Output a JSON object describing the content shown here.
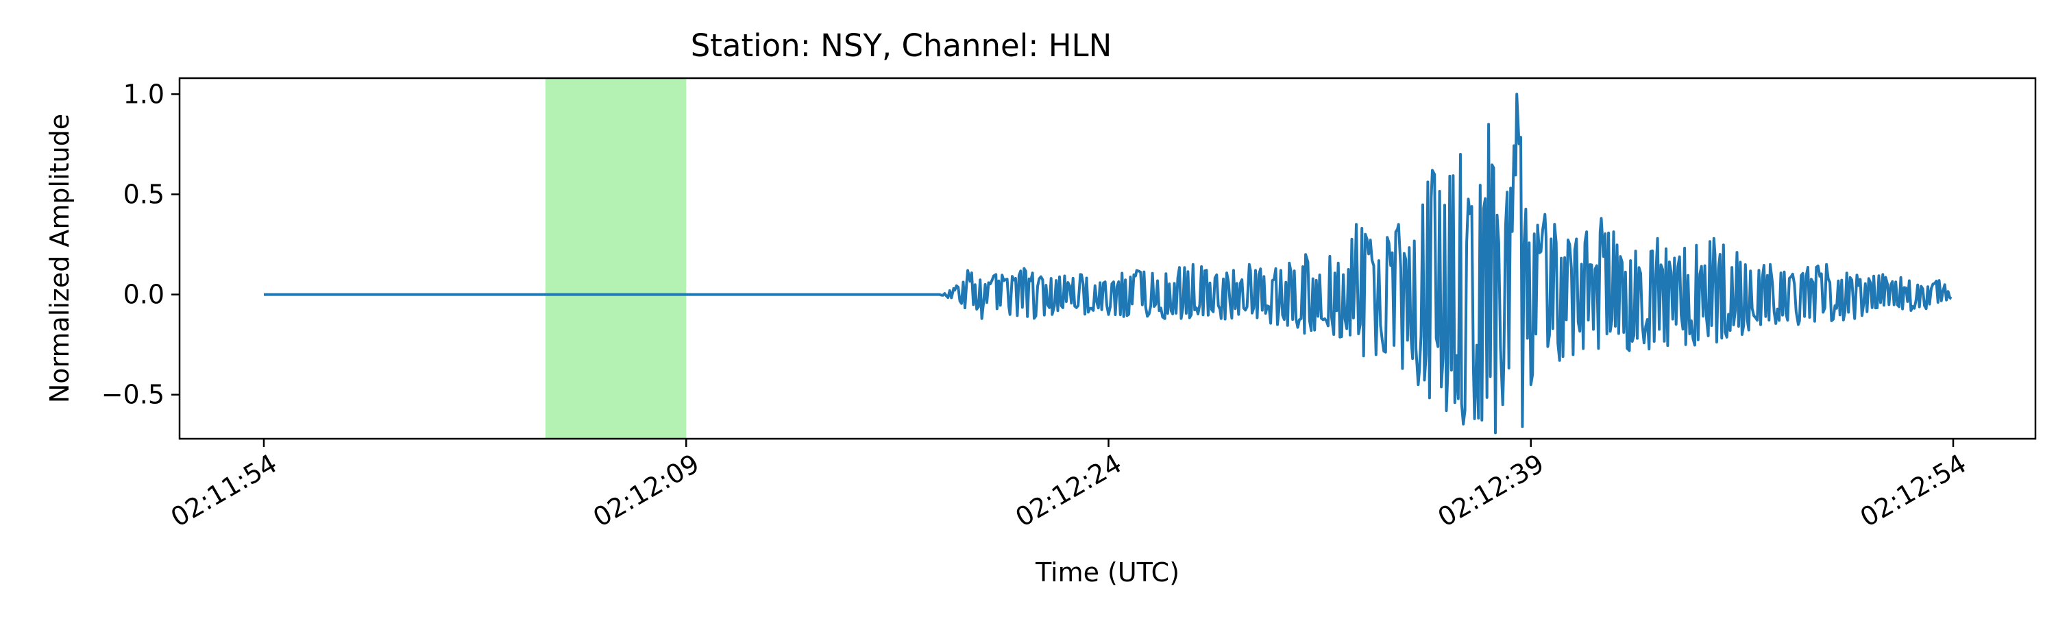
{
  "chart_data": {
    "type": "line",
    "title": "Station: NSY, Channel: HLN",
    "xlabel": "Time (UTC)",
    "ylabel": "Normalized Amplitude",
    "x_start": "02:11:54",
    "x_end": "02:12:54",
    "x_ticks": [
      "02:11:54",
      "02:12:09",
      "02:12:24",
      "02:12:39",
      "02:12:54"
    ],
    "x_tick_seconds": [
      0,
      15,
      30,
      45,
      60
    ],
    "ylim": [
      -0.72,
      1.08
    ],
    "y_ticks": [
      1.0,
      0.5,
      0.0,
      -0.5
    ],
    "y_tick_labels": [
      "1.0",
      "0.5",
      "0.0",
      "−0.5"
    ],
    "grid": false,
    "highlight": {
      "start": "02:12:04",
      "end": "02:12:09",
      "color": "#b3f2b3"
    },
    "series_color": "#1f77b4",
    "series": [
      {
        "x": [
          0,
          24.0,
          24.5,
          25.0,
          25.5,
          26.0,
          26.5,
          27.0,
          28.0,
          29.0,
          30.0,
          31.0,
          32.0,
          33.0,
          34.0,
          35.0,
          36.0,
          37.0,
          38.0,
          38.8,
          39.5,
          40.3,
          41.0,
          41.5,
          42.0,
          42.5,
          43.0,
          43.5,
          44.0,
          44.5,
          45.0,
          45.5,
          46.5,
          47.5,
          48.5,
          49.5,
          50.5,
          51.5,
          52.5,
          53.5,
          54.5,
          55.5,
          56.5,
          57.5,
          58.5,
          59.5,
          60.0
        ],
        "y": [
          0.0,
          0.0,
          0.03,
          0.12,
          -0.12,
          0.1,
          -0.1,
          0.13,
          -0.1,
          0.1,
          -0.1,
          0.12,
          -0.12,
          0.15,
          -0.12,
          0.15,
          -0.15,
          0.2,
          -0.2,
          0.35,
          -0.3,
          0.35,
          -0.45,
          0.62,
          -0.58,
          0.7,
          -0.62,
          0.85,
          -0.55,
          1.0,
          -0.45,
          0.4,
          -0.3,
          0.38,
          -0.28,
          0.28,
          -0.25,
          0.28,
          -0.2,
          0.15,
          -0.15,
          0.15,
          -0.12,
          0.1,
          -0.08,
          0.07,
          -0.02
        ]
      }
    ]
  }
}
